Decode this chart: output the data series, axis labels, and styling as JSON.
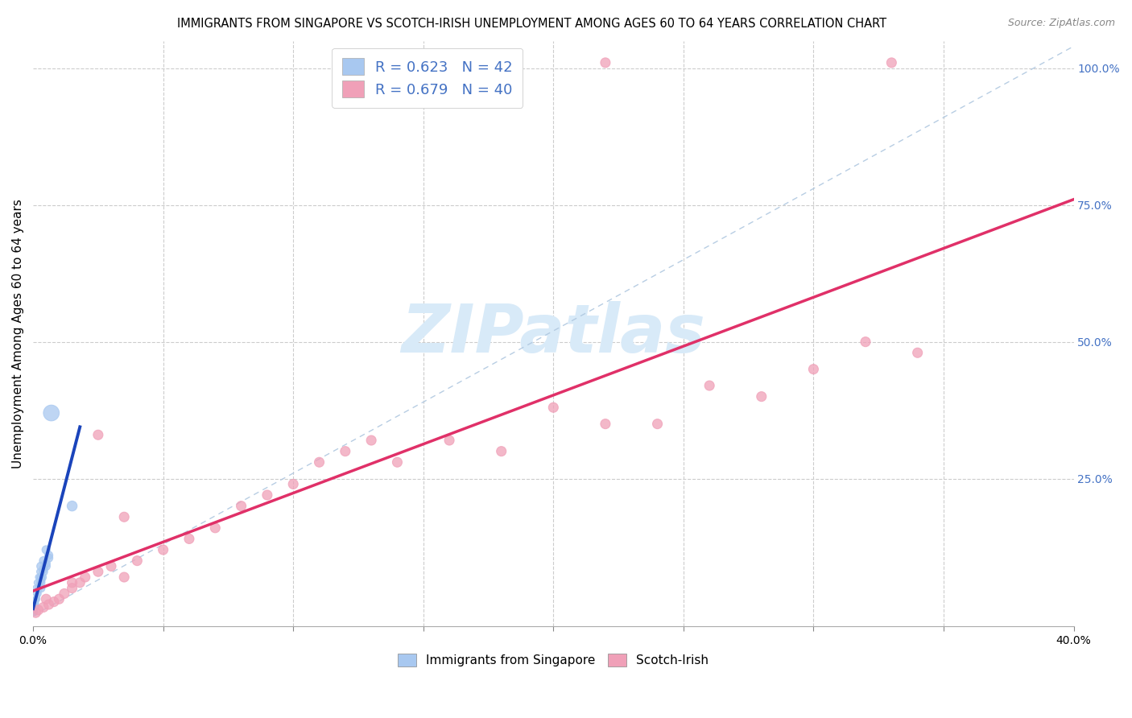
{
  "title": "IMMIGRANTS FROM SINGAPORE VS SCOTCH-IRISH UNEMPLOYMENT AMONG AGES 60 TO 64 YEARS CORRELATION CHART",
  "source": "Source: ZipAtlas.com",
  "ylabel": "Unemployment Among Ages 60 to 64 years",
  "xmin": 0.0,
  "xmax": 0.4,
  "ymin": -0.02,
  "ymax": 1.05,
  "singapore_R": 0.623,
  "singapore_N": 42,
  "scotch_irish_R": 0.679,
  "scotch_irish_N": 40,
  "singapore_color": "#a8c8f0",
  "singapore_line_color": "#1a44bb",
  "scotch_irish_color": "#f0a0b8",
  "scotch_irish_line_color": "#e03068",
  "diagonal_color": "#b0c8e0",
  "watermark_color": "#d8eaf8",
  "title_fontsize": 10.5,
  "axis_label_fontsize": 11,
  "tick_fontsize": 10,
  "legend_fontsize": 13,
  "right_tick_color": "#4472c4"
}
